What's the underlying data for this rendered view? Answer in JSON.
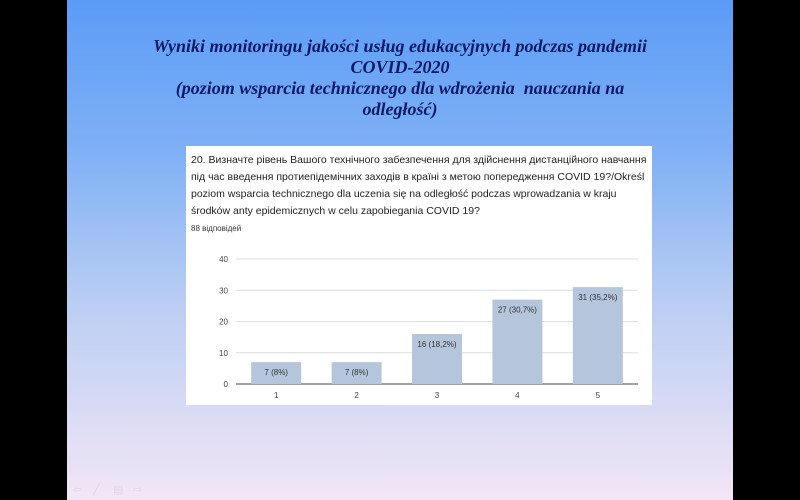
{
  "slide": {
    "title_lines": [
      "Wyniki monitoringu jakości usług edukacyjnych podczas pandemii",
      "COVID-2020",
      "(poziom wsparcia technicznego dla wdrożenia  nauczania na",
      "odległość)"
    ]
  },
  "card": {
    "question": "20. Визначте рівень Вашого технічного забезпечення для здійснення дистанційного навчання під час введення протиепідемічних заходів в країні з метою попередження COVID 19?/Określ poziom wsparcia technicznego dla uczenia się na odległość podczas wprowadzania w kraju środków anty epidemicznych w celu zapobiegania COVID 19?",
    "responses": "88 відповідей"
  },
  "chart_data": {
    "type": "bar",
    "categories": [
      "1",
      "2",
      "3",
      "4",
      "5"
    ],
    "values": [
      7,
      7,
      16,
      27,
      31
    ],
    "data_labels": [
      "7 (8%)",
      "7 (8%)",
      "16 (18,2%)",
      "27 (30,7%)",
      "31 (35,2%)"
    ],
    "yticks": [
      "0",
      "10",
      "20",
      "30",
      "40"
    ],
    "ylim": [
      0,
      40
    ],
    "grid": true,
    "bar_color": "#b4c5dc"
  },
  "nav_icons": [
    "arrow-left-icon",
    "pen-icon",
    "menu-icon",
    "arrow-right-icon"
  ]
}
